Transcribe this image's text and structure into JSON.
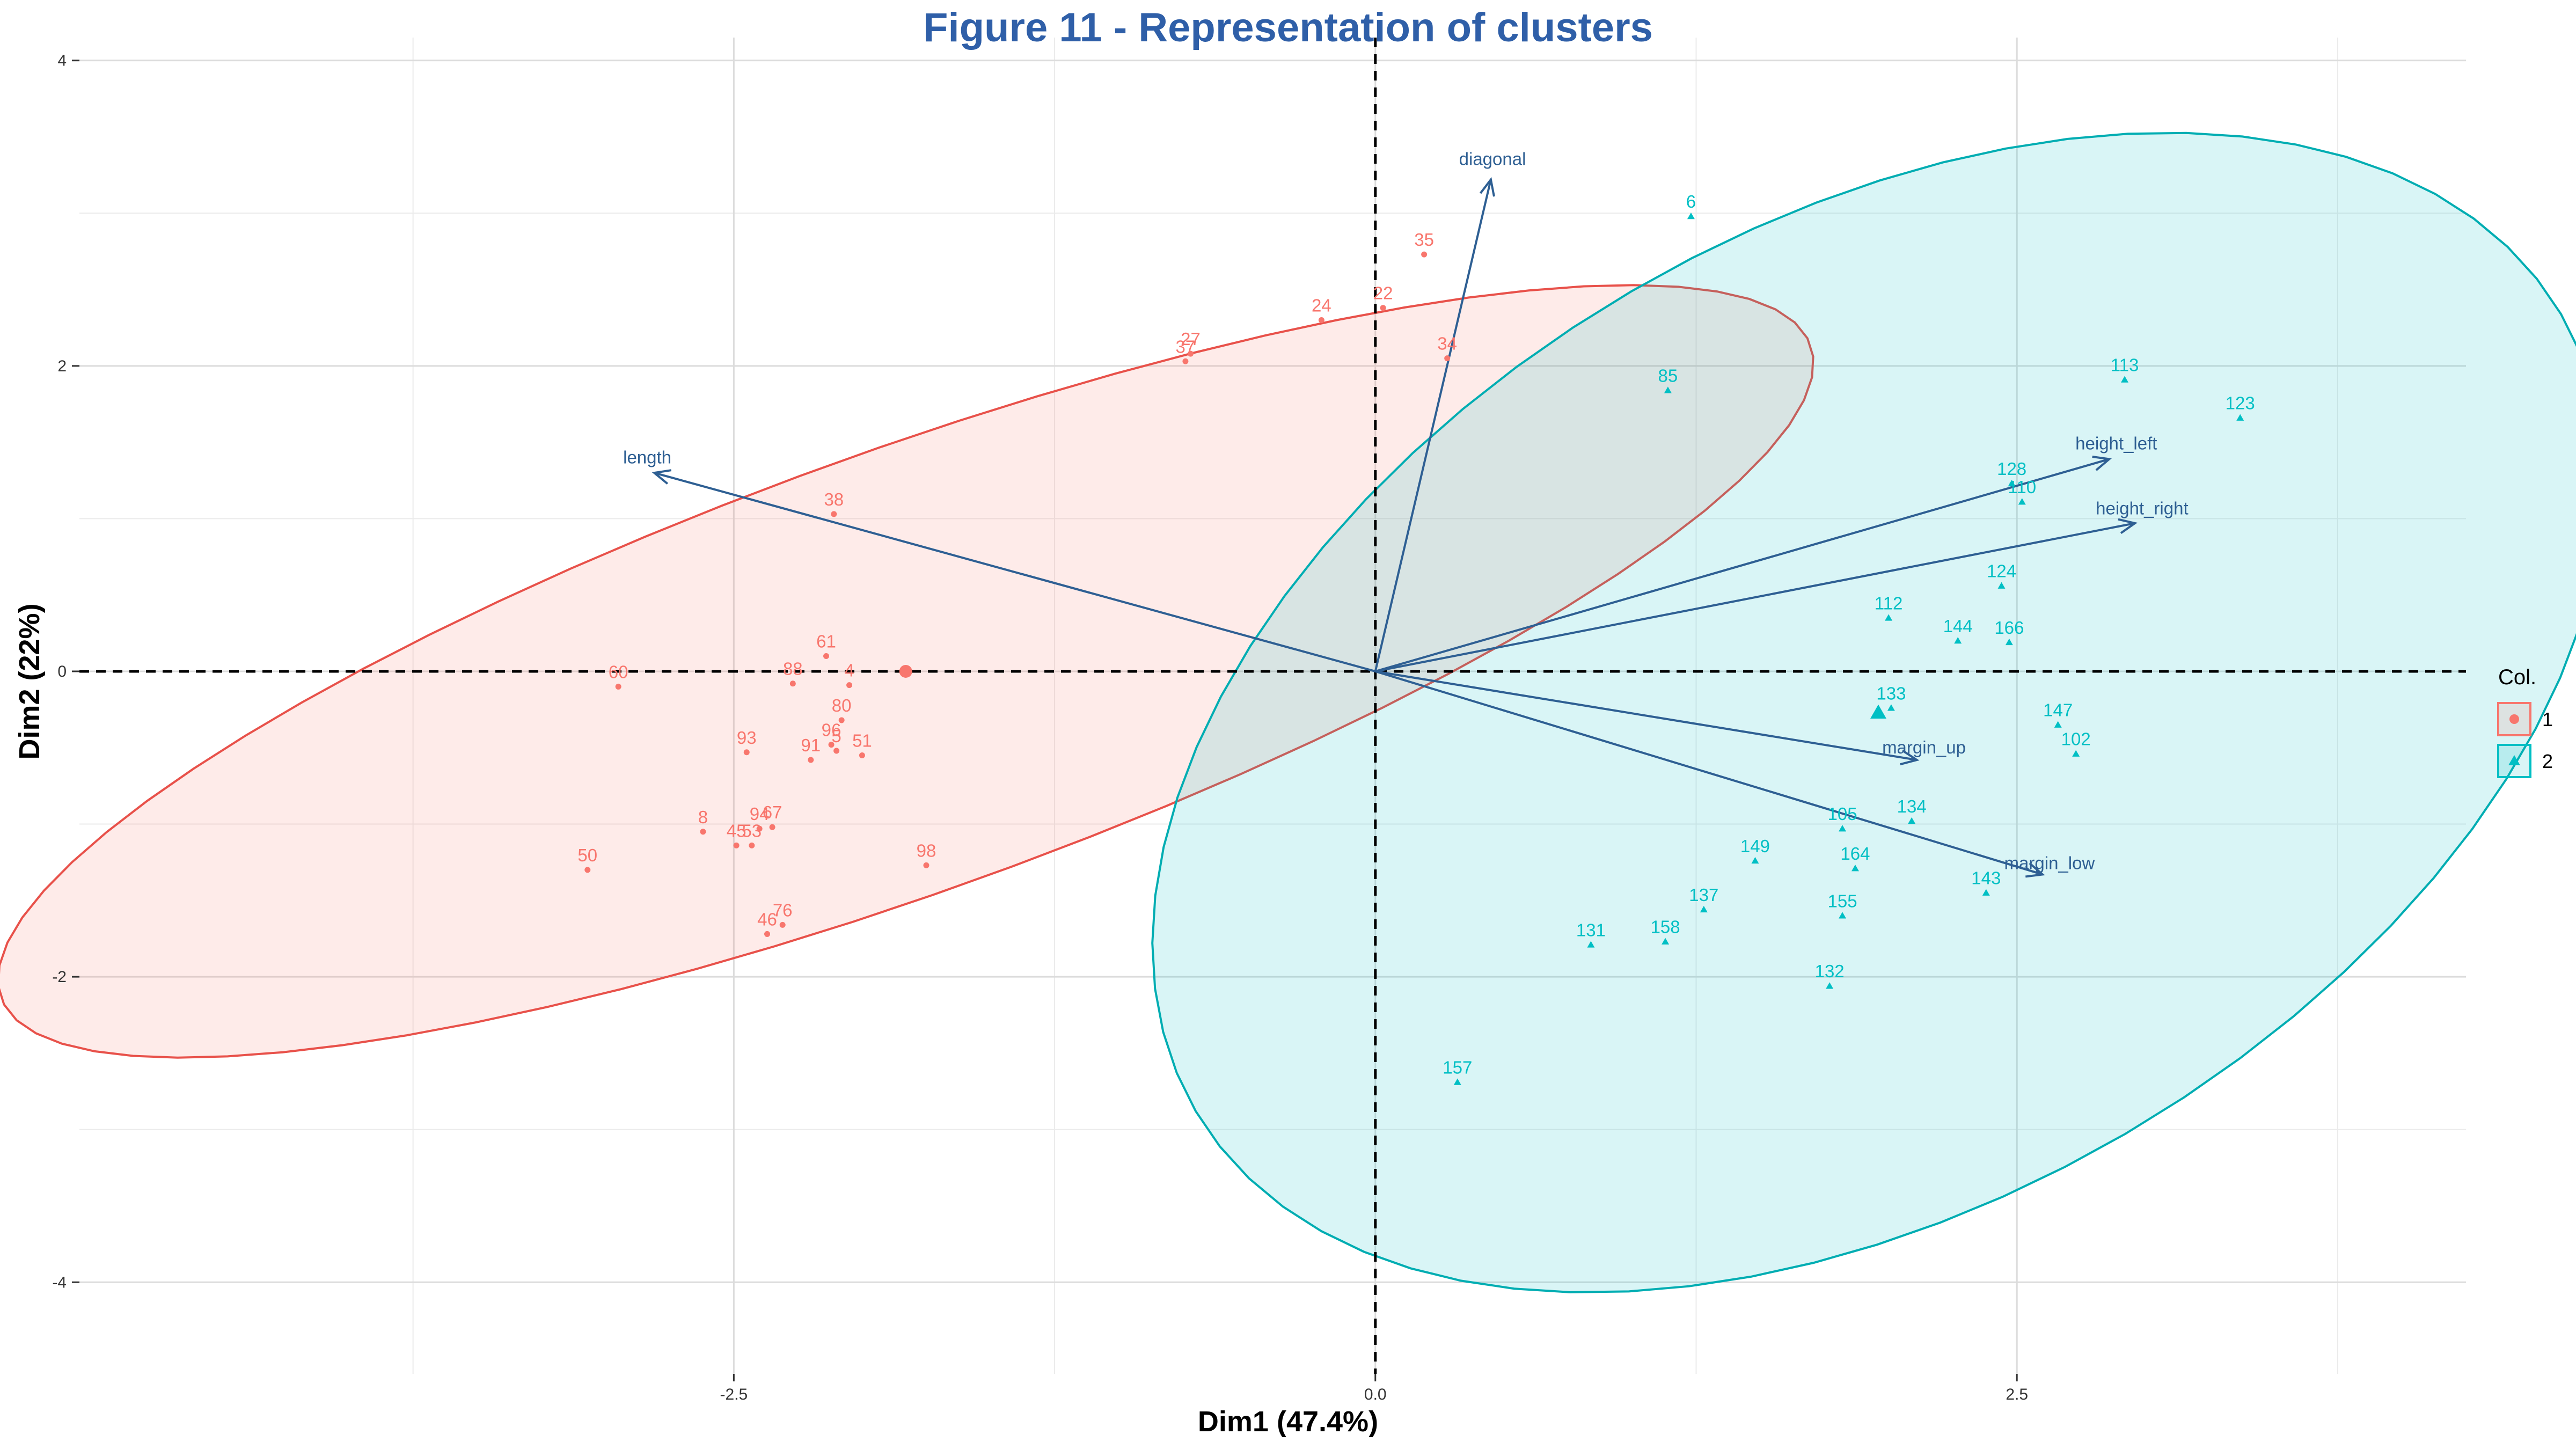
{
  "chart_data": {
    "type": "scatter",
    "title": "Figure 11 - Representation of clusters",
    "xlabel": "Dim1 (47.4%)",
    "ylabel": "Dim2 (22%)",
    "xlim": [
      -5.05,
      4.25
    ],
    "ylim": [
      -4.6,
      4.15
    ],
    "x_ticks": [
      -2.5,
      0.0,
      2.5
    ],
    "y_ticks": [
      -4,
      -2,
      0,
      2,
      4
    ],
    "x_tick_labels": [
      "-2.5",
      "0.0",
      "2.5"
    ],
    "y_tick_labels": [
      "-4",
      "-2",
      "0",
      "2",
      "4"
    ],
    "grid": true,
    "reference_lines": [
      "x=0 dashed",
      "y=0 dashed"
    ],
    "legend": {
      "title": "Col.",
      "placement": "right",
      "entries": [
        "1",
        "2"
      ]
    },
    "colors": {
      "cluster_1": "#F8766D",
      "cluster_2": "#00BFC4",
      "ellipse_1_stroke": "#E8514A",
      "ellipse_2_stroke": "#00ADB2",
      "arrows": "#2E5F93",
      "title": "#2F5FA8"
    },
    "series": [
      {
        "name": "1",
        "marker": "circle",
        "points": [
          {
            "label": "35",
            "x": 0.19,
            "y": 2.73
          },
          {
            "label": "24",
            "x": -0.21,
            "y": 2.3
          },
          {
            "label": "22",
            "x": 0.03,
            "y": 2.38
          },
          {
            "label": "34",
            "x": 0.28,
            "y": 2.05
          },
          {
            "label": "27",
            "x": -0.72,
            "y": 2.08
          },
          {
            "label": "37",
            "x": -0.74,
            "y": 2.03
          },
          {
            "label": "38",
            "x": -2.11,
            "y": 1.03
          },
          {
            "label": "60",
            "x": -2.95,
            "y": -0.1
          },
          {
            "label": "61",
            "x": -2.14,
            "y": 0.1
          },
          {
            "label": "88",
            "x": -2.27,
            "y": -0.08
          },
          {
            "label": "4",
            "x": -2.05,
            "y": -0.09
          },
          {
            "label": "80",
            "x": -2.08,
            "y": -0.32
          },
          {
            "label": "96",
            "x": -2.12,
            "y": -0.48
          },
          {
            "label": "5",
            "x": -2.1,
            "y": -0.52
          },
          {
            "label": "93",
            "x": -2.45,
            "y": -0.53
          },
          {
            "label": "91",
            "x": -2.2,
            "y": -0.58
          },
          {
            "label": "51",
            "x": -2.0,
            "y": -0.55
          },
          {
            "label": "8",
            "x": -2.62,
            "y": -1.05
          },
          {
            "label": "94",
            "x": -2.4,
            "y": -1.03
          },
          {
            "label": "67",
            "x": -2.35,
            "y": -1.02
          },
          {
            "label": "45",
            "x": -2.49,
            "y": -1.14
          },
          {
            "label": "53",
            "x": -2.43,
            "y": -1.14
          },
          {
            "label": "50",
            "x": -3.07,
            "y": -1.3
          },
          {
            "label": "98",
            "x": -1.75,
            "y": -1.27
          },
          {
            "label": "46",
            "x": -2.37,
            "y": -1.72
          },
          {
            "label": "76",
            "x": -2.31,
            "y": -1.66
          }
        ],
        "centroid": {
          "x": -1.83,
          "y": 0.0
        }
      },
      {
        "name": "2",
        "marker": "triangle",
        "points": [
          {
            "label": "6",
            "x": 1.23,
            "y": 2.98
          },
          {
            "label": "85",
            "x": 1.14,
            "y": 1.84
          },
          {
            "label": "113",
            "x": 2.92,
            "y": 1.91
          },
          {
            "label": "123",
            "x": 3.37,
            "y": 1.66
          },
          {
            "label": "128",
            "x": 2.48,
            "y": 1.23
          },
          {
            "label": "110",
            "x": 2.52,
            "y": 1.11
          },
          {
            "label": "124",
            "x": 2.44,
            "y": 0.56
          },
          {
            "label": "112",
            "x": 2.0,
            "y": 0.35
          },
          {
            "label": "144",
            "x": 2.27,
            "y": 0.2
          },
          {
            "label": "166",
            "x": 2.47,
            "y": 0.19
          },
          {
            "label": "133",
            "x": 2.01,
            "y": -0.24
          },
          {
            "label": "147",
            "x": 2.66,
            "y": -0.35
          },
          {
            "label": "102",
            "x": 2.73,
            "y": -0.54
          },
          {
            "label": "134",
            "x": 2.09,
            "y": -0.98
          },
          {
            "label": "105",
            "x": 1.82,
            "y": -1.03
          },
          {
            "label": "149",
            "x": 1.48,
            "y": -1.24
          },
          {
            "label": "164",
            "x": 1.87,
            "y": -1.29
          },
          {
            "label": "137",
            "x": 1.28,
            "y": -1.56
          },
          {
            "label": "155",
            "x": 1.82,
            "y": -1.6
          },
          {
            "label": "143",
            "x": 2.38,
            "y": -1.45
          },
          {
            "label": "131",
            "x": 0.84,
            "y": -1.79
          },
          {
            "label": "158",
            "x": 1.13,
            "y": -1.77
          },
          {
            "label": "132",
            "x": 1.77,
            "y": -2.06
          },
          {
            "label": "157",
            "x": 0.32,
            "y": -2.69
          }
        ],
        "centroid": {
          "x": 1.96,
          "y": -0.27
        }
      }
    ],
    "variables": [
      {
        "name": "diagonal",
        "x": 0.45,
        "y": 3.22
      },
      {
        "name": "length",
        "x": -2.81,
        "y": 1.3
      },
      {
        "name": "height_left",
        "x": 2.86,
        "y": 1.39
      },
      {
        "name": "height_right",
        "x": 2.96,
        "y": 0.97
      },
      {
        "name": "margin_up",
        "x": 2.11,
        "y": -0.58
      },
      {
        "name": "margin_low",
        "x": 2.6,
        "y": -1.33
      }
    ],
    "ellipses": [
      {
        "series": "1",
        "cx": -1.83,
        "cy": 0.0,
        "rx": 4.15,
        "ry": 1.3,
        "angle_deg": 33.4
      },
      {
        "series": "2",
        "cx": 1.96,
        "cy": -0.27,
        "rx": 4.07,
        "ry": 2.42,
        "angle_deg": 63.4
      }
    ]
  }
}
